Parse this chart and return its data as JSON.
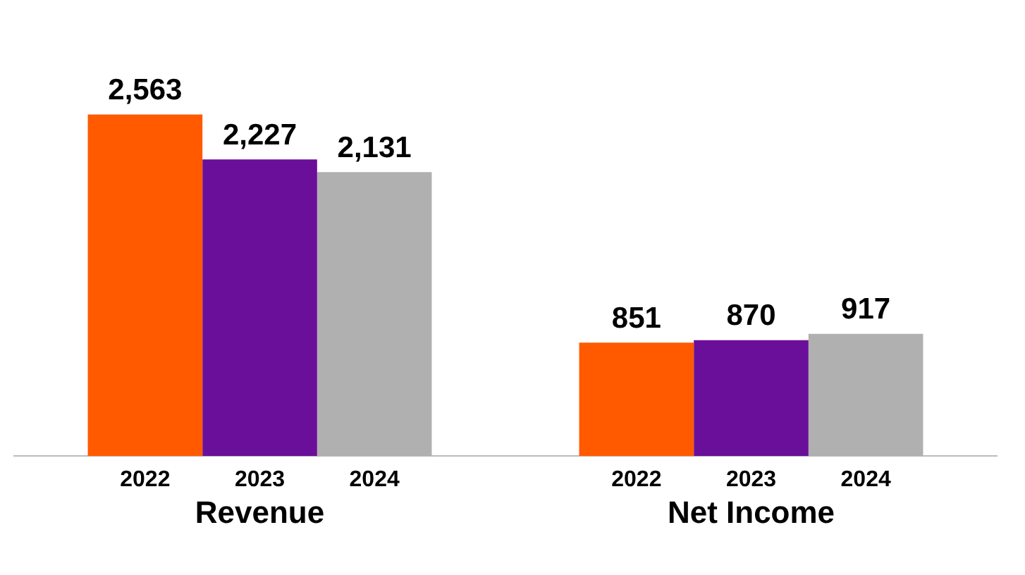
{
  "chart_data": {
    "type": "bar",
    "categories": [
      "Revenue",
      "Net Income"
    ],
    "series": [
      {
        "name": "2022",
        "color": "#ff5a00",
        "values": [
          2563,
          851
        ],
        "value_labels": [
          "2,563",
          "851"
        ]
      },
      {
        "name": "2023",
        "color": "#6a0f9a",
        "values": [
          2227,
          870
        ],
        "value_labels": [
          "2,227",
          "870"
        ]
      },
      {
        "name": "2024",
        "color": "#b0b0b0",
        "values": [
          2131,
          917
        ],
        "value_labels": [
          "2,131",
          "917"
        ]
      }
    ],
    "grid": false,
    "legend": false,
    "tick_labels": "x"
  }
}
